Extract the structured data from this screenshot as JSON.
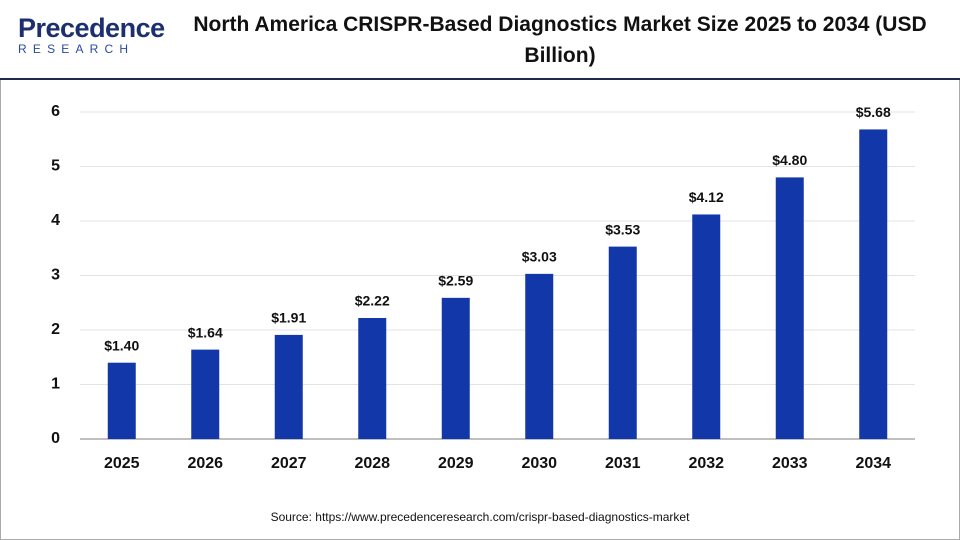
{
  "brand": {
    "name": "Precedence",
    "sub": "RESEARCH"
  },
  "chart_data": {
    "type": "bar",
    "title": "North America CRISPR-Based Diagnostics Market Size 2025 to 2034 (USD Billion)",
    "categories": [
      "2025",
      "2026",
      "2027",
      "2028",
      "2029",
      "2030",
      "2031",
      "2032",
      "2033",
      "2034"
    ],
    "values": [
      1.4,
      1.64,
      1.91,
      2.22,
      2.59,
      3.03,
      3.53,
      4.12,
      4.8,
      5.68
    ],
    "value_labels": [
      "$1.40",
      "$1.64",
      "$1.91",
      "$2.22",
      "$2.59",
      "$3.03",
      "$3.53",
      "$4.12",
      "$4.80",
      "$5.68"
    ],
    "color": "#1237a8",
    "ylim": [
      0,
      6
    ],
    "yticks": [
      0,
      1,
      2,
      3,
      4,
      5,
      6
    ],
    "grid": true,
    "source": "Source: https://www.precedenceresearch.com/crispr-based-diagnostics-market"
  }
}
